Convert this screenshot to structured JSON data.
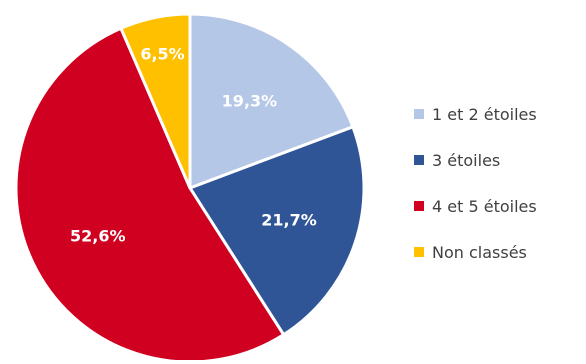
{
  "chart_data": {
    "type": "pie",
    "categories": [
      "1 et 2 étoiles",
      "3 étoiles",
      "4 et 5 étoiles",
      "Non classés"
    ],
    "values": [
      19.3,
      21.7,
      52.6,
      6.5
    ],
    "value_labels": [
      "19,3%",
      "21,7%",
      "52,6%",
      "6,5%"
    ],
    "colors": [
      "#b4c7e7",
      "#2f5597",
      "#d00020",
      "#ffc000"
    ],
    "legend_position": "right",
    "title": "",
    "start_angle_deg": -90,
    "direction": "clockwise"
  },
  "legend": {
    "items": [
      {
        "label": "1 et 2 étoiles",
        "color": "#b4c7e7"
      },
      {
        "label": "3 étoiles",
        "color": "#2f5597"
      },
      {
        "label": "4 et 5 étoiles",
        "color": "#d00020"
      },
      {
        "label": "Non classés",
        "color": "#ffc000"
      }
    ]
  }
}
